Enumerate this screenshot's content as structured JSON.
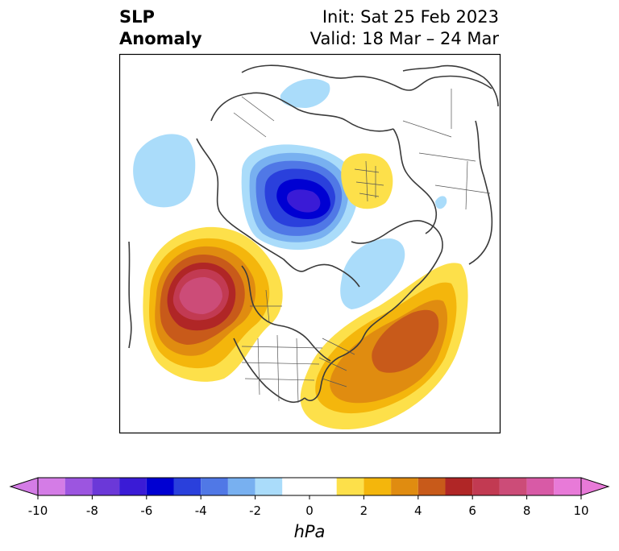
{
  "title": {
    "line1": "SLP",
    "line2": "Anomaly",
    "init": "Init: Sat 25 Feb 2023",
    "valid": "Valid: 18 Mar – 24 Mar"
  },
  "colorbar": {
    "unit": "hPa",
    "ticks": [
      -10,
      -8,
      -6,
      -4,
      -2,
      0,
      2,
      4,
      6,
      8,
      10
    ],
    "tick_labels": [
      "-10",
      "-8",
      "-6",
      "-4",
      "-2",
      "0",
      "2",
      "4",
      "6",
      "8",
      "10"
    ],
    "levels": [
      -10,
      -9,
      -8,
      -7,
      -6,
      -5,
      -4,
      -3,
      -2,
      -1,
      1,
      2,
      3,
      4,
      5,
      6,
      7,
      8,
      9,
      10
    ],
    "colors": [
      "#d47ce6",
      "#9c55e0",
      "#6b38d8",
      "#3a1bd6",
      "#0000d2",
      "#2a40dc",
      "#5078e6",
      "#78b0f0",
      "#aadcfa",
      "#ffffff",
      "#fde04a",
      "#f4b60c",
      "#e08c10",
      "#c85a1a",
      "#b02626",
      "#c23a52",
      "#cc4c78",
      "#d85aa6",
      "#e87ad8"
    ],
    "extend": "both"
  },
  "map": {
    "projection": "north-polar-stereographic",
    "region": "Northern Hemisphere / North America",
    "features": [
      {
        "label": "negative-anomaly",
        "value": -6,
        "region": "Arctic north of Siberia"
      },
      {
        "label": "positive-anomaly",
        "value": 8,
        "region": "Gulf of Alaska / NE Pacific"
      },
      {
        "label": "positive-anomaly",
        "value": 5,
        "region": "Western North Atlantic"
      },
      {
        "label": "positive-anomaly",
        "value": 2,
        "region": "Scandinavia / Baltic"
      },
      {
        "label": "negative-anomaly",
        "value": -2,
        "region": "Hudson Bay / Canadian Arctic"
      },
      {
        "label": "negative-anomaly",
        "value": -2,
        "region": "Western Siberia"
      }
    ]
  }
}
